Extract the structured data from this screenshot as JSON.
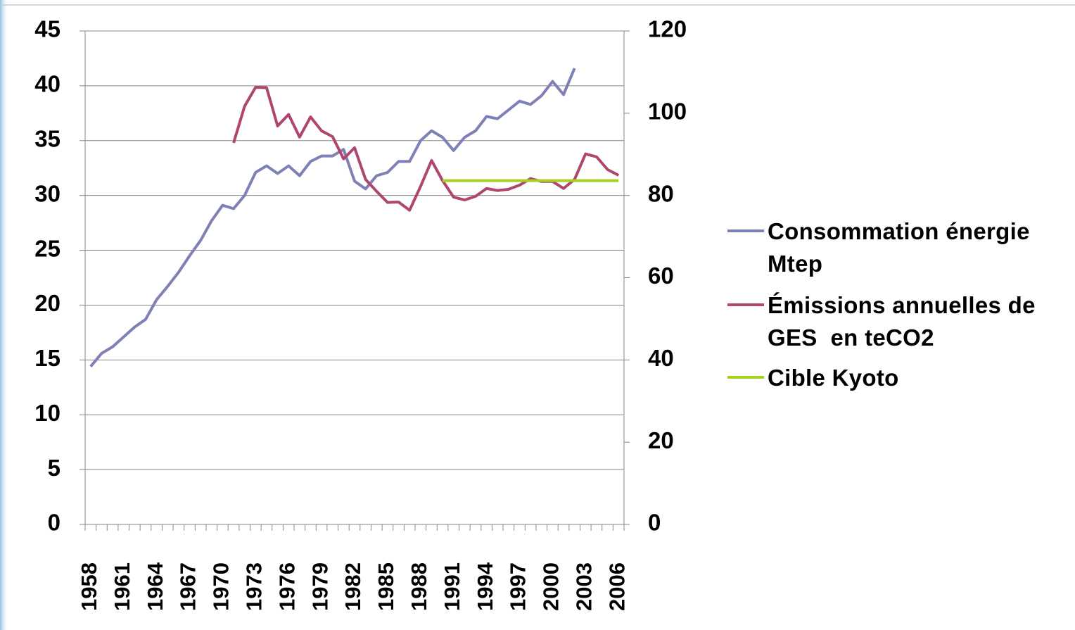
{
  "chart_data": {
    "type": "line",
    "categories": [
      "1958",
      null,
      null,
      "1961",
      null,
      null,
      "1964",
      null,
      null,
      "1967",
      null,
      null,
      "1970",
      null,
      null,
      "1973",
      null,
      null,
      "1976",
      null,
      null,
      "1979",
      null,
      null,
      "1982",
      null,
      null,
      "1985",
      null,
      null,
      "1988",
      null,
      null,
      "1991",
      null,
      null,
      "1994",
      null,
      null,
      "1997",
      null,
      null,
      "2000",
      null,
      null,
      "2003",
      null,
      null,
      "2006"
    ],
    "series": [
      {
        "name": "Consommation énergie Mtep",
        "color": "#7f80b6",
        "values": [
          14.4,
          15.6,
          16.2,
          17.1,
          18.0,
          18.7,
          20.5,
          21.7,
          23.0,
          24.5,
          25.9,
          27.7,
          29.1,
          28.8,
          30.0,
          32.1,
          32.7,
          32.0,
          32.7,
          31.8,
          33.1,
          33.6,
          33.6,
          34.2,
          31.3,
          30.6,
          31.8,
          32.1,
          33.1,
          33.1,
          35.0,
          35.9,
          35.3,
          34.1,
          35.3,
          35.9,
          37.2,
          37.0,
          37.8,
          38.6,
          38.3,
          39.1,
          40.4,
          39.2,
          41.6,
          null,
          null,
          null,
          null
        ]
      },
      {
        "name": "Émissions annuelles de GES  en teCO2",
        "color": "#b0456f",
        "axis": "y2",
        "values": [
          null,
          null,
          null,
          null,
          null,
          null,
          null,
          null,
          null,
          null,
          null,
          null,
          null,
          92.8,
          101.7,
          106.3,
          106.2,
          96.9,
          99.7,
          94.2,
          99.1,
          95.7,
          94.3,
          88.9,
          91.6,
          83.9,
          81.0,
          78.3,
          78.4,
          76.4,
          82.2,
          88.5,
          83.6,
          79.6,
          78.9,
          79.8,
          81.7,
          81.2,
          81.5,
          82.5,
          84.1,
          83.4,
          83.4,
          81.7,
          83.9,
          90.1,
          89.4,
          86.3,
          84.9
        ]
      },
      {
        "name": "Cible Kyoto",
        "color": "#a5d11f",
        "axis": "y2",
        "values": [
          null,
          null,
          null,
          null,
          null,
          null,
          null,
          null,
          null,
          null,
          null,
          null,
          null,
          null,
          null,
          null,
          null,
          null,
          null,
          null,
          null,
          null,
          null,
          null,
          null,
          null,
          null,
          null,
          null,
          null,
          null,
          null,
          83.6,
          83.6,
          83.6,
          83.6,
          83.6,
          83.6,
          83.6,
          83.6,
          83.6,
          83.6,
          83.6,
          83.6,
          83.6,
          83.6,
          83.6,
          83.6,
          83.6
        ]
      }
    ],
    "ylim": [
      0,
      45
    ],
    "yticks": [
      0,
      5,
      10,
      15,
      20,
      25,
      30,
      35,
      40,
      45
    ],
    "y2lim": [
      0,
      120
    ],
    "y2ticks": [
      0,
      20,
      40,
      60,
      80,
      100,
      120
    ],
    "grid": true,
    "legend": "right"
  }
}
